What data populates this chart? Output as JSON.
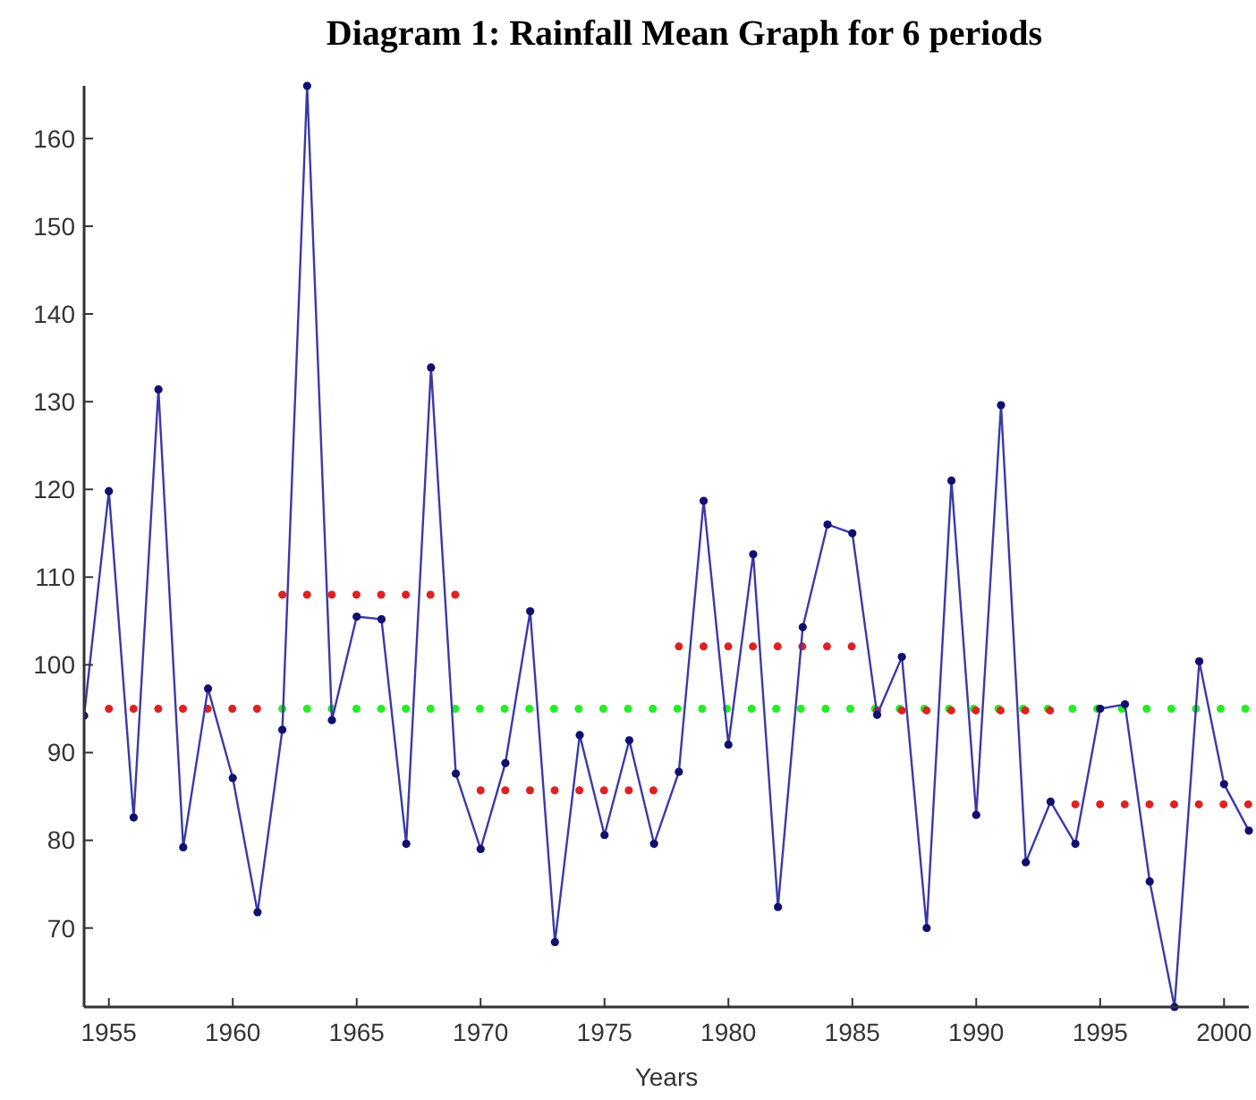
{
  "chart_data": {
    "type": "line",
    "title": "Diagram 1: Rainfall Mean Graph for 6 periods",
    "xlabel": "Years",
    "xlim": [
      1954,
      2001
    ],
    "ylim": [
      61,
      166
    ],
    "xticks": [
      1955,
      1960,
      1965,
      1970,
      1975,
      1980,
      1985,
      1990,
      1995,
      2000
    ],
    "yticks": [
      70,
      80,
      90,
      100,
      110,
      120,
      130,
      140,
      150,
      160
    ],
    "grid": false,
    "series": [
      {
        "color": "#22ee22",
        "marker": "none",
        "line_style": "dotted",
        "x": [
          1962,
          2001
        ],
        "values": [
          95,
          95
        ]
      },
      {
        "color": "#dd2222",
        "marker": "none",
        "line_style": "dotted",
        "x": [
          1955,
          1961
        ],
        "values": [
          95,
          95
        ]
      },
      {
        "color": "#dd2222",
        "marker": "none",
        "line_style": "dotted",
        "x": [
          1962,
          1969
        ],
        "values": [
          108,
          108
        ]
      },
      {
        "color": "#dd2222",
        "marker": "none",
        "line_style": "dotted",
        "x": [
          1970,
          1977
        ],
        "values": [
          85.7,
          85.7
        ]
      },
      {
        "color": "#dd2222",
        "marker": "none",
        "line_style": "dotted",
        "x": [
          1978,
          1985
        ],
        "values": [
          102.1,
          102.1
        ]
      },
      {
        "color": "#dd2222",
        "marker": "none",
        "line_style": "dotted",
        "x": [
          1986,
          1993
        ],
        "values": [
          94.8,
          94.8
        ]
      },
      {
        "color": "#dd2222",
        "marker": "none",
        "line_style": "dotted",
        "x": [
          1994,
          2001
        ],
        "values": [
          84.1,
          84.1
        ]
      },
      {
        "color": "#3a3aa8",
        "marker": "circle",
        "line_style": "solid",
        "x": [
          1954,
          1955,
          1956,
          1957,
          1958,
          1959,
          1960,
          1961,
          1962,
          1963,
          1964,
          1965,
          1966,
          1967,
          1968,
          1969,
          1970,
          1971,
          1972,
          1973,
          1974,
          1975,
          1976,
          1977,
          1978,
          1979,
          1980,
          1981,
          1982,
          1983,
          1984,
          1985,
          1986,
          1987,
          1988,
          1989,
          1990,
          1991,
          1992,
          1993,
          1994,
          1995,
          1996,
          1997,
          1998,
          1999,
          2000,
          2001
        ],
        "values": [
          94.2,
          119.8,
          82.6,
          131.4,
          79.2,
          97.3,
          87.1,
          71.8,
          92.6,
          166,
          93.7,
          105.5,
          105.2,
          79.6,
          133.9,
          87.6,
          79.0,
          88.8,
          106.1,
          68.4,
          92.0,
          80.6,
          91.4,
          79.6,
          87.8,
          118.7,
          90.9,
          112.6,
          72.4,
          104.3,
          116.0,
          115.0,
          94.3,
          100.9,
          70.0,
          121.0,
          82.9,
          129.6,
          77.5,
          84.4,
          79.6,
          95.0,
          95.5,
          75.3,
          61,
          100.4,
          86.4,
          81.1
        ]
      }
    ]
  }
}
